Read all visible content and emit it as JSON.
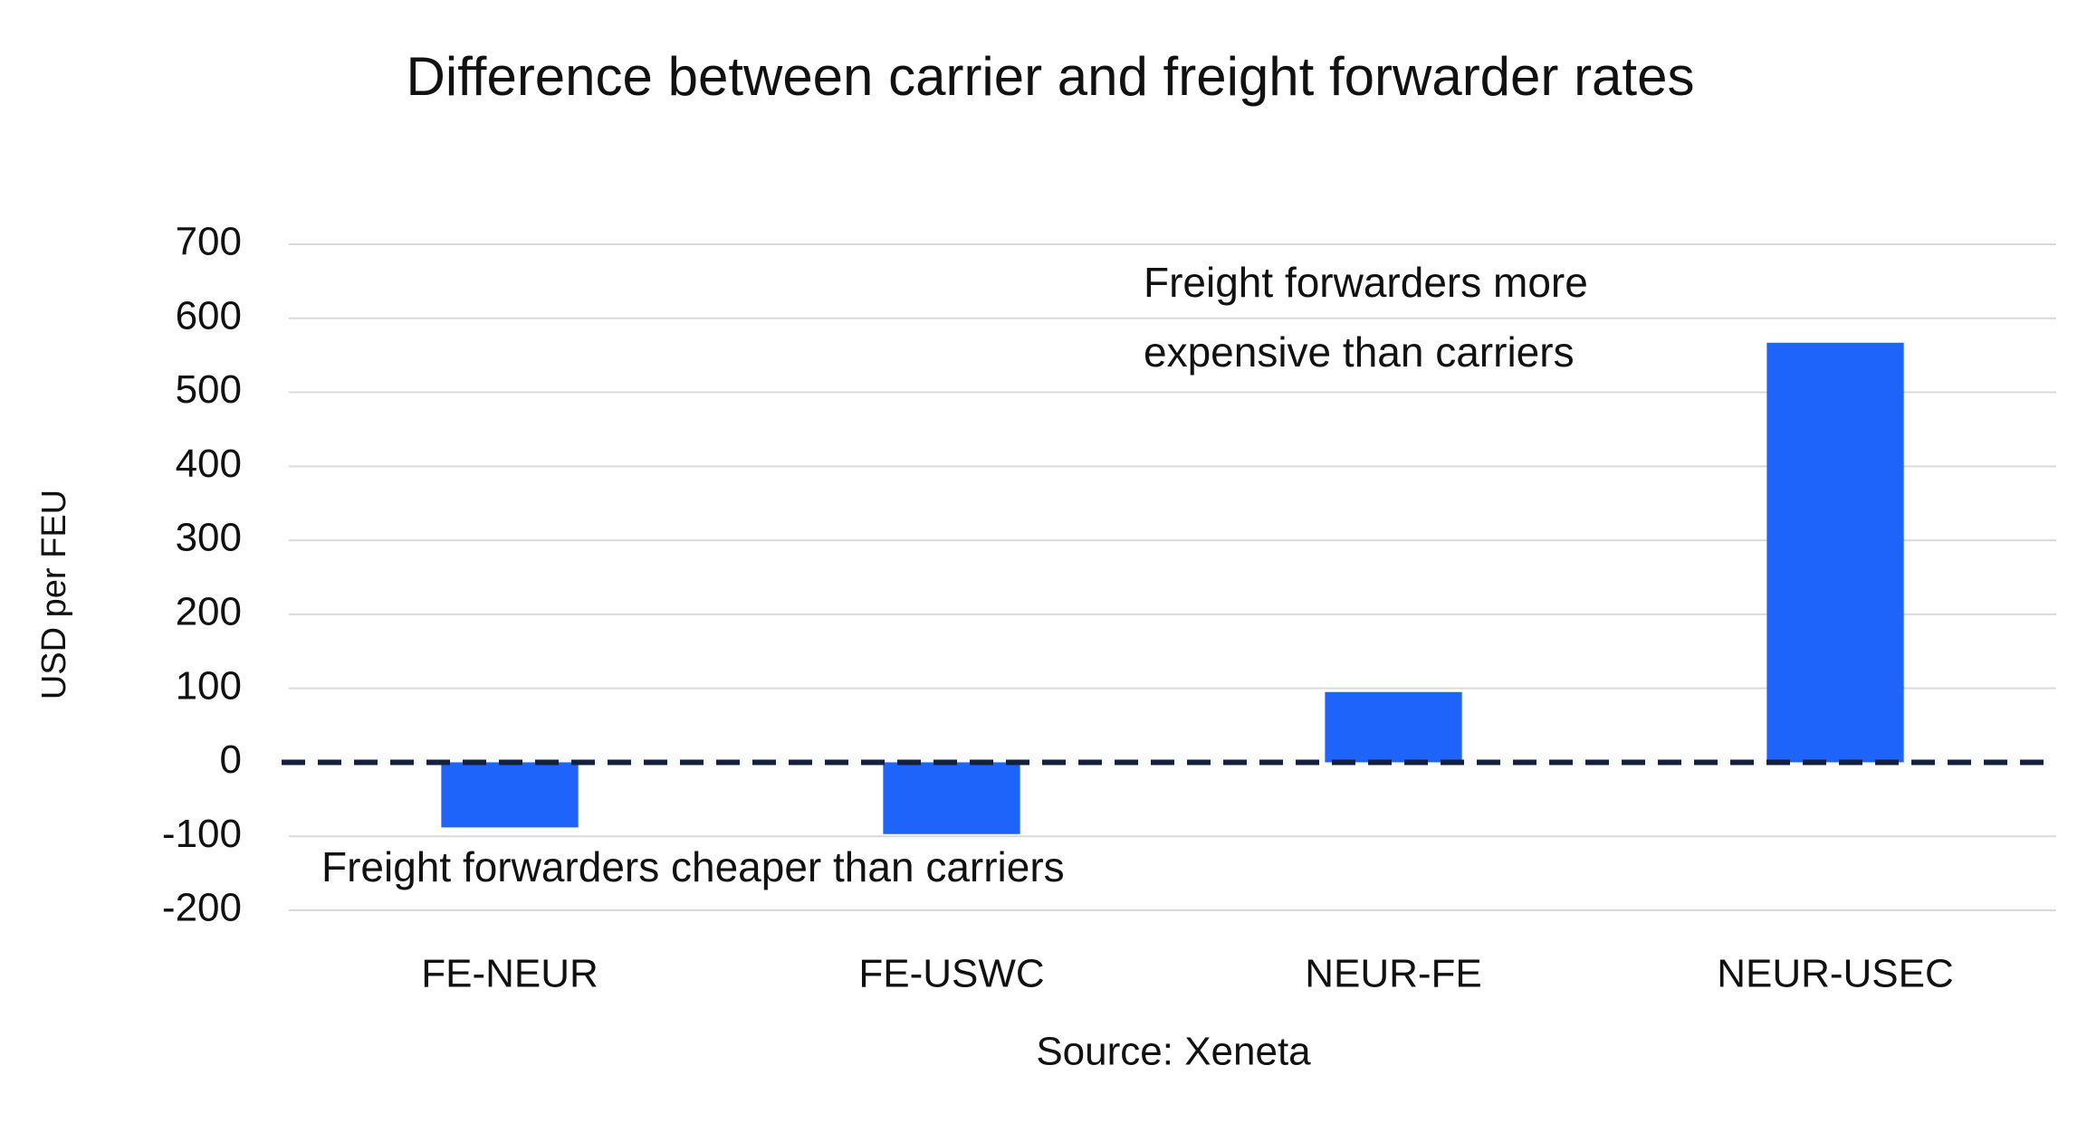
{
  "chart_data": {
    "type": "bar",
    "title": "Difference between carrier and freight forwarder rates",
    "y_label": "USD per FEU",
    "source": "Source: Xeneta",
    "annotations": [
      [
        "Freight forwarders more",
        "expensive than carriers"
      ],
      [
        "Freight forwarders cheaper than carriers"
      ]
    ],
    "categories": [
      "FE-NEUR",
      "FE-USWC",
      "NEUR-FE",
      "NEUR-USEC"
    ],
    "values": [
      -88,
      -97,
      95,
      567
    ],
    "color": "#1f64fa",
    "ylim": [
      -200,
      700
    ],
    "yticks": [
      -200,
      -100,
      0,
      100,
      200,
      300,
      400,
      500,
      600,
      700
    ],
    "grid": true
  }
}
